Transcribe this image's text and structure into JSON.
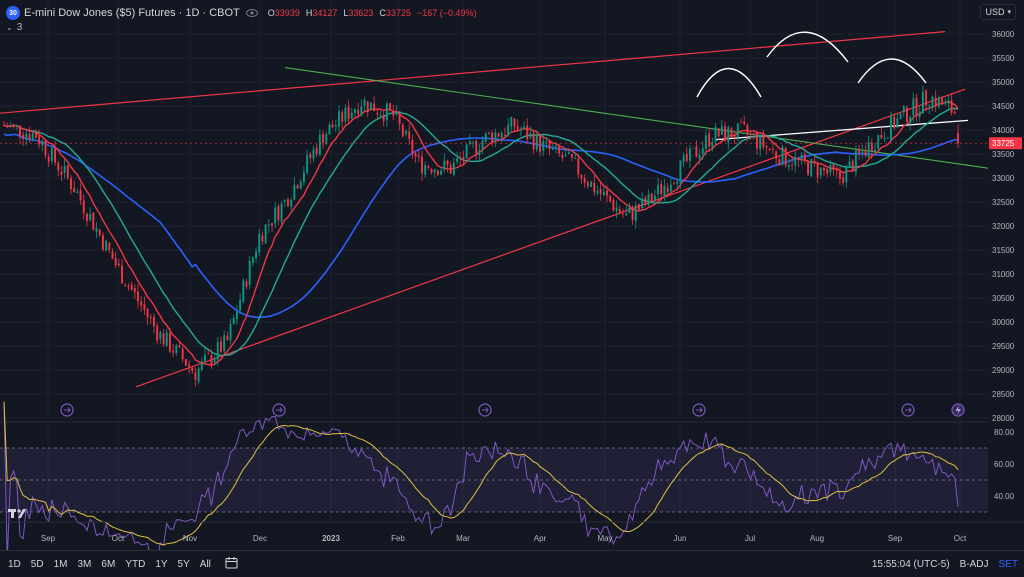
{
  "header": {
    "logo_text": "30",
    "title": "E-mini Dow Jones ($5) Futures · 1D · CBOT",
    "open_label": "O",
    "open": "33939",
    "high_label": "H",
    "high": "34127",
    "low_label": "L",
    "low": "33623",
    "close_label": "C",
    "close": "33725",
    "change": "−167 (−0.49%)",
    "indicators_toggle": "3"
  },
  "currency": "USD",
  "price_axis": {
    "ticks": [
      "36000",
      "35500",
      "35000",
      "34500",
      "34000",
      "33500",
      "33000",
      "32500",
      "32000",
      "31500",
      "31000",
      "30500",
      "30000",
      "29500",
      "29000",
      "28500",
      "28000"
    ],
    "last_price": "33725",
    "last_price_color": "#f23645"
  },
  "rsi_axis": {
    "ticks": [
      "80.00",
      "60.00",
      "40.00"
    ]
  },
  "time_axis": {
    "labels": [
      "Sep",
      "Oct",
      "Nov",
      "Dec",
      "2023",
      "Feb",
      "Mar",
      "Apr",
      "May",
      "Jun",
      "Jul",
      "Aug",
      "Sep",
      "Oct"
    ]
  },
  "bottom_bar": {
    "ranges": [
      "1D",
      "5D",
      "1M",
      "3M",
      "6M",
      "YTD",
      "1Y",
      "5Y",
      "All"
    ],
    "calendar_icon": "calendar-icon",
    "clock": "15:55:04 (UTC-5)",
    "badj": "B-ADJ",
    "set": "SET"
  },
  "colors": {
    "up": "#089981",
    "down": "#f23645",
    "ma_fast": "#f23645",
    "ma_mid": "#22ab94",
    "ma_slow": "#2962ff",
    "rsi_line": "#7e57c2",
    "rsi_ma": "#e0c040",
    "trend_red": "#f23645",
    "trend_green": "#4caf50",
    "pattern": "#ffffff"
  }
}
